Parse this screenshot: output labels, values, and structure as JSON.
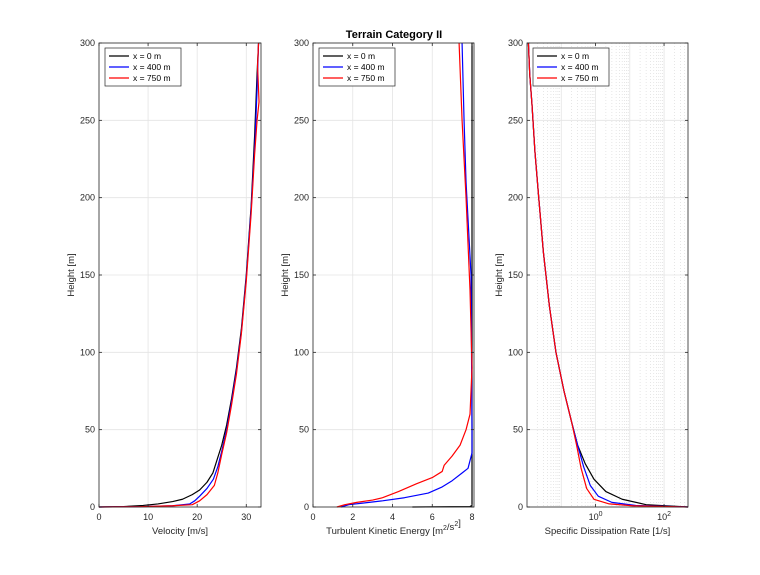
{
  "figure": {
    "title": "Terrain Category II"
  },
  "chart_data": [
    {
      "type": "line",
      "xlabel": "Velocity [m/s]",
      "ylabel": "Height [m]",
      "xlim": [
        0,
        33
      ],
      "ylim": [
        0,
        300
      ],
      "xticks": [
        0,
        10,
        20,
        30
      ],
      "yticks": [
        0,
        50,
        100,
        150,
        200,
        250,
        300
      ],
      "grid": true,
      "legend_position": "top-left",
      "series": [
        {
          "name": "x = 0 m",
          "color": "#000000",
          "x": [
            0,
            5,
            9,
            12,
            15,
            17,
            19,
            20.5,
            22,
            23.2,
            24,
            25,
            26,
            27,
            28,
            29,
            30,
            31,
            31.7,
            32.2,
            32.5
          ],
          "y": [
            0,
            0.3,
            1,
            2,
            3.5,
            5,
            8,
            11,
            16,
            22,
            30,
            40,
            53,
            70,
            90,
            115,
            150,
            195,
            240,
            280,
            300
          ]
        },
        {
          "name": "x = 400 m",
          "color": "#0000ff",
          "x": [
            0,
            8,
            15,
            18.5,
            19.5,
            20.5,
            22,
            23.3,
            24.2,
            25,
            26,
            27,
            28,
            29,
            30,
            31,
            31.8,
            32.2,
            32.4,
            32.5
          ],
          "y": [
            0,
            0.2,
            0.8,
            2,
            4,
            7,
            12,
            18,
            26,
            36,
            50,
            68,
            88,
            113,
            148,
            193,
            238,
            270,
            290,
            300
          ]
        },
        {
          "name": "x = 750 m",
          "color": "#ff0000",
          "x": [
            0,
            8,
            15,
            19,
            20.5,
            22,
            23.5,
            24.2,
            25,
            26,
            27,
            28,
            29,
            30,
            31,
            31.7,
            32.2,
            32.6,
            32.3,
            32.5
          ],
          "y": [
            0,
            0.2,
            0.8,
            1.5,
            4,
            8,
            14,
            22,
            34,
            48,
            66,
            86,
            112,
            146,
            190,
            228,
            250,
            262,
            285,
            300
          ]
        }
      ]
    },
    {
      "type": "line",
      "title": "Terrain Category II",
      "xlabel": "Turbulent Kinetic Energy [m²/s²]",
      "ylabel": "Height [m]",
      "xlim": [
        0,
        8.1
      ],
      "ylim": [
        0,
        300
      ],
      "xticks": [
        0,
        2,
        4,
        6,
        8
      ],
      "yticks": [
        0,
        50,
        100,
        150,
        200,
        250,
        300
      ],
      "grid": true,
      "legend_position": "top-left",
      "series": [
        {
          "name": "x = 0 m",
          "color": "#000000",
          "x": [
            5.0,
            7.9,
            8.0,
            8.0,
            8.0
          ],
          "y": [
            0,
            0.3,
            1,
            150,
            300
          ]
        },
        {
          "name": "x = 400 m",
          "color": "#0000ff",
          "x": [
            1.4,
            1.8,
            2.5,
            3.5,
            4.6,
            5.8,
            6.5,
            7.0,
            7.5,
            7.8,
            8.0,
            8.0,
            7.95,
            7.7,
            7.6,
            7.5
          ],
          "y": [
            0,
            1.5,
            2.5,
            4,
            6,
            9,
            13,
            17,
            22,
            25,
            35,
            50,
            150,
            210,
            250,
            300
          ]
        },
        {
          "name": "x = 750 m",
          "color": "#ff0000",
          "x": [
            1.2,
            1.6,
            2.2,
            3.0,
            3.5,
            4.3,
            5.2,
            6.0,
            6.5,
            6.6,
            7.0,
            7.4,
            7.7,
            7.9,
            8.0,
            7.9,
            7.7,
            7.5,
            7.35
          ],
          "y": [
            0,
            1.5,
            3,
            4.5,
            6,
            10,
            15,
            19,
            23,
            27,
            33,
            40,
            50,
            60,
            90,
            140,
            200,
            250,
            300
          ]
        }
      ]
    },
    {
      "type": "line",
      "xlabel": "Specific Dissipation Rate [1/s]",
      "ylabel": "Height [m]",
      "xscale": "log",
      "xlim": [
        0.01,
        500
      ],
      "ylim": [
        0,
        300
      ],
      "xticks": [
        1,
        100
      ],
      "xtick_labels": [
        "10⁰",
        "10²"
      ],
      "yticks": [
        0,
        50,
        100,
        150,
        200,
        250,
        300
      ],
      "grid": true,
      "legend_position": "top-left",
      "series": [
        {
          "name": "x = 0 m",
          "color": "#000000",
          "x": [
            0.011,
            0.012,
            0.014,
            0.017,
            0.022,
            0.03,
            0.045,
            0.07,
            0.12,
            0.2,
            0.3,
            0.5,
            0.9,
            2,
            6,
            30,
            500
          ],
          "y": [
            300,
            280,
            260,
            230,
            200,
            165,
            130,
            100,
            75,
            55,
            40,
            28,
            18,
            10,
            5,
            1.5,
            0
          ]
        },
        {
          "name": "x = 400 m",
          "color": "#0000ff",
          "x": [
            0.011,
            0.012,
            0.014,
            0.017,
            0.022,
            0.03,
            0.045,
            0.07,
            0.12,
            0.2,
            0.3,
            0.45,
            0.7,
            1.2,
            3,
            15,
            500
          ],
          "y": [
            300,
            280,
            260,
            230,
            200,
            165,
            130,
            100,
            75,
            55,
            40,
            26,
            14,
            7,
            3,
            1,
            0
          ]
        },
        {
          "name": "x = 750 m",
          "color": "#ff0000",
          "x": [
            0.011,
            0.012,
            0.014,
            0.017,
            0.022,
            0.03,
            0.045,
            0.07,
            0.12,
            0.2,
            0.28,
            0.38,
            0.55,
            0.9,
            2.5,
            12,
            500
          ],
          "y": [
            300,
            280,
            260,
            230,
            200,
            165,
            130,
            100,
            75,
            55,
            40,
            25,
            12,
            5,
            2,
            0.8,
            0
          ]
        }
      ]
    }
  ]
}
